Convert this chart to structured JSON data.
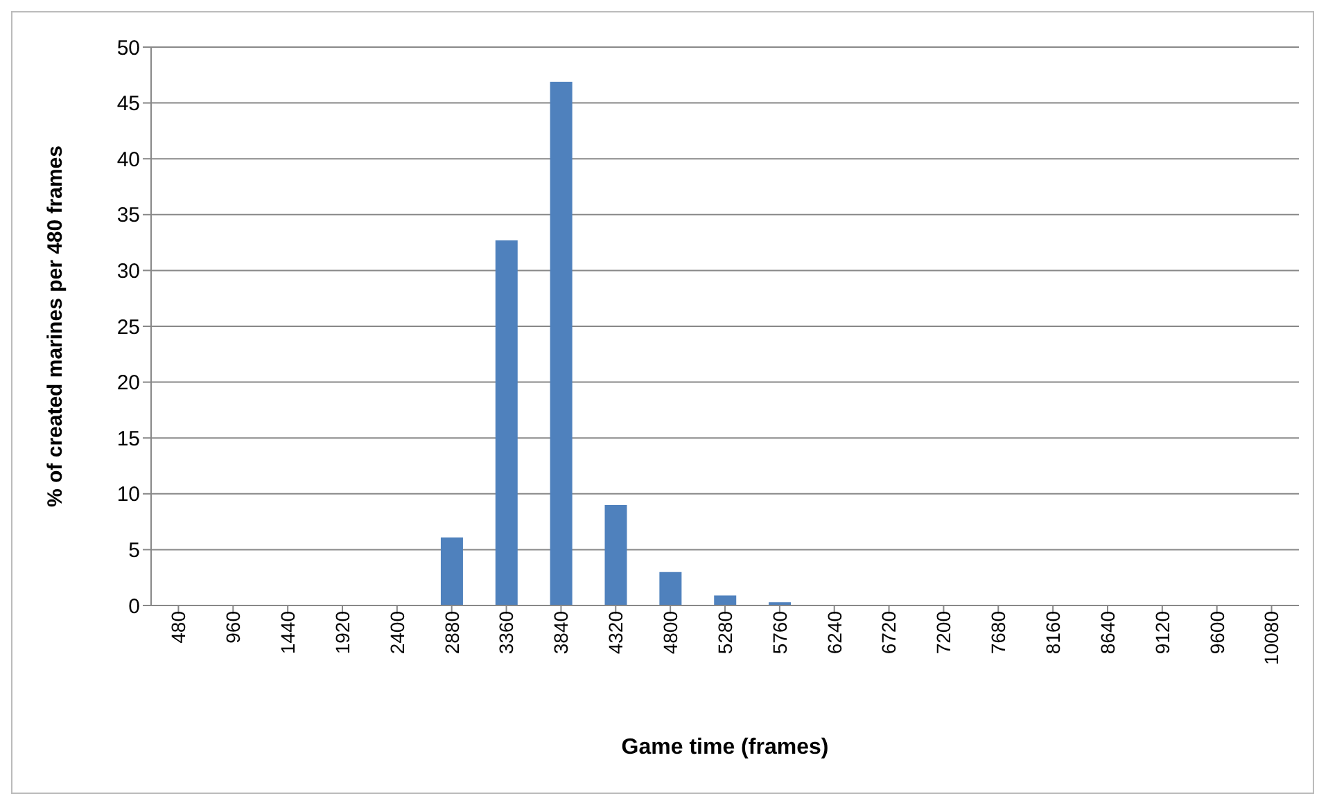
{
  "chart_data": {
    "type": "bar",
    "xlabel": "Game time (frames)",
    "ylabel": "% of created marines  per 480 frames",
    "categories": [
      "480",
      "960",
      "1440",
      "1920",
      "2400",
      "2880",
      "3360",
      "3840",
      "4320",
      "4800",
      "5280",
      "5760",
      "6240",
      "6720",
      "7200",
      "7680",
      "8160",
      "8640",
      "9120",
      "9600",
      "10080"
    ],
    "values": [
      0,
      0,
      0,
      0,
      0,
      6.1,
      32.7,
      46.9,
      9.0,
      3.0,
      0.9,
      0.3,
      0,
      0,
      0,
      0,
      0,
      0,
      0,
      0,
      0
    ],
    "color": "#4f81bd",
    "ylim": [
      0,
      50
    ],
    "yticks": [
      0,
      5,
      10,
      15,
      20,
      25,
      30,
      35,
      40,
      45,
      50
    ],
    "grid": "y"
  }
}
